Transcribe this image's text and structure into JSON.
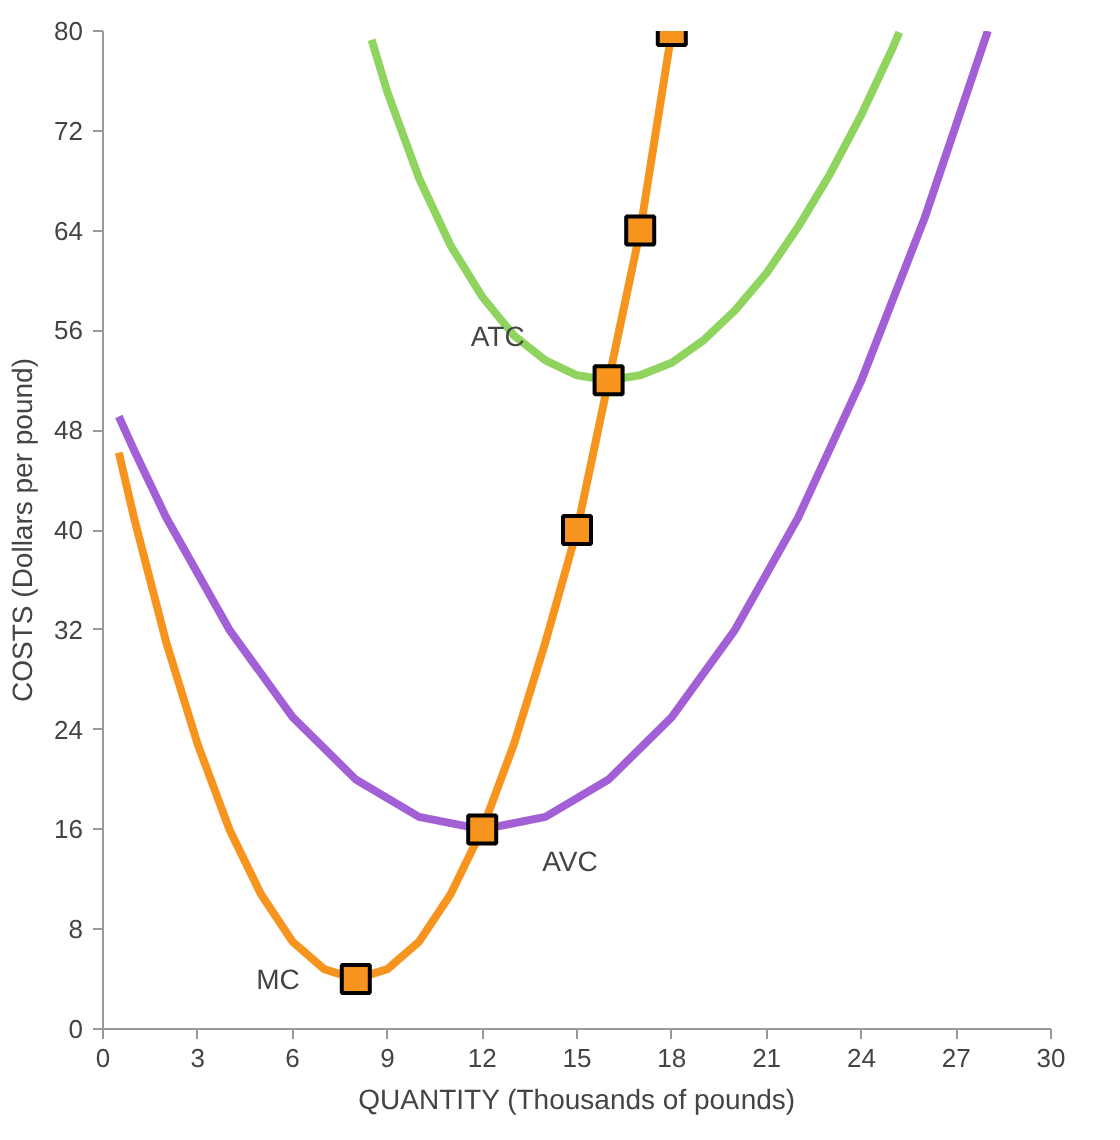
{
  "chart_data": {
    "type": "line",
    "xlabel": "QUANTITY (Thousands of pounds)",
    "ylabel": "COSTS (Dollars per pound)",
    "xlim": [
      0,
      30
    ],
    "ylim": [
      0,
      80
    ],
    "xticks": [
      0,
      3,
      6,
      9,
      12,
      15,
      18,
      21,
      24,
      27,
      30
    ],
    "yticks": [
      0,
      8,
      16,
      24,
      32,
      40,
      48,
      56,
      64,
      72,
      80
    ],
    "grid": false,
    "marker": "none",
    "line_style": "solid",
    "series": [
      {
        "name": "ATC",
        "color": "#8fd45f",
        "x": [
          8.5,
          9,
          10,
          11,
          12,
          13,
          14,
          15,
          16,
          17,
          18,
          19,
          20,
          21,
          22,
          23,
          24,
          25,
          25.2
        ],
        "values": [
          79.3,
          75.1,
          68.2,
          62.8,
          58.7,
          55.6,
          53.6,
          52.4,
          52,
          52.4,
          53.4,
          55.2,
          57.6,
          60.6,
          64.3,
          68.5,
          73.3,
          78.7,
          79.9
        ]
      },
      {
        "name": "AVC",
        "color": "#a35fd6",
        "x": [
          0.5,
          1,
          2,
          4,
          6,
          8,
          10,
          12,
          14,
          16,
          18,
          20,
          22,
          24,
          26,
          28
        ],
        "values": [
          49.1,
          46.3,
          41,
          32,
          25,
          20,
          17,
          16,
          17,
          20,
          25,
          32,
          41,
          52,
          65,
          80
        ]
      },
      {
        "name": "MC",
        "color": "#f7941d",
        "x": [
          0.5,
          1,
          2,
          3,
          4,
          5,
          6,
          7,
          8,
          9,
          10,
          11,
          12,
          13,
          14,
          15,
          16,
          17,
          18
        ],
        "values": [
          46.2,
          40.8,
          31,
          22.8,
          16,
          10.8,
          7,
          4.8,
          4,
          4.8,
          7,
          10.8,
          16,
          22.8,
          31,
          40,
          52,
          64,
          80
        ]
      },
      {
        "type": "scatter",
        "marker": "square",
        "color": "#f7941d",
        "x": [
          8,
          12,
          15,
          16,
          17,
          18
        ],
        "values": [
          4,
          16,
          40,
          52,
          64,
          80
        ]
      }
    ]
  }
}
